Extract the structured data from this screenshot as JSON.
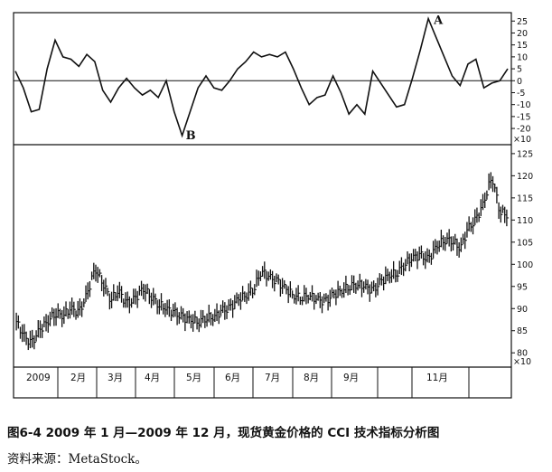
{
  "caption": "图6-4   2009 年 1 月—2009 年 12 月，现货黄金价格的 CCI 技术指标分析图",
  "source": "资料来源：MetaStock。",
  "chart_data": [
    {
      "type": "line",
      "series": [
        {
          "x": [
            0,
            4,
            8,
            12,
            16,
            20,
            24,
            28,
            32,
            36,
            40,
            44,
            48,
            52,
            56,
            60,
            64,
            68,
            72,
            76,
            80,
            84,
            88,
            92,
            96,
            100,
            104,
            108,
            112,
            116,
            120,
            124,
            128,
            132,
            136,
            140,
            144,
            148,
            152,
            156,
            160,
            164,
            168,
            172,
            176,
            180,
            184,
            188,
            192,
            196,
            200,
            204,
            208,
            212,
            216,
            220,
            224,
            228,
            232,
            236,
            240,
            244,
            248
          ],
          "values": [
            4,
            -3,
            -13,
            -12,
            5,
            17,
            10,
            9,
            6,
            11,
            8,
            -4,
            -9,
            -3,
            1,
            -3,
            -6,
            -4,
            -7,
            0,
            -13,
            -23,
            -13,
            -3,
            2,
            -3,
            -4,
            0,
            5,
            8,
            12,
            10,
            11,
            10,
            12,
            5,
            -3,
            -10,
            -7,
            -6,
            2,
            -5,
            -14,
            -10,
            -14,
            4,
            -1,
            -6,
            -11,
            -10,
            1,
            13,
            26,
            18,
            10,
            2,
            -2,
            7,
            9,
            -3,
            -1,
            0,
            5
          ],
          "ticks_per_x10": true
        }
      ],
      "yticks": [
        25,
        20,
        15,
        10,
        5,
        0,
        -5,
        -10,
        -15,
        -20
      ],
      "ylim": [
        -23,
        27
      ],
      "reference_line": 0,
      "scale_note": "×10",
      "annotations": [
        {
          "label": "A",
          "at_x": 208,
          "at_y": 26
        },
        {
          "label": "B",
          "at_x": 84,
          "at_y": -23
        }
      ]
    },
    {
      "type": "ohlc",
      "series": [
        {
          "x": [
            0,
            4,
            8,
            12,
            16,
            20,
            24,
            28,
            32,
            36,
            40,
            44,
            48,
            52,
            56,
            60,
            64,
            68,
            72,
            76,
            80,
            84,
            88,
            92,
            96,
            100,
            104,
            108,
            112,
            116,
            120,
            124,
            128,
            132,
            136,
            140,
            144,
            148,
            152,
            156,
            160,
            164,
            168,
            172,
            176,
            180,
            184,
            188,
            192,
            196,
            200,
            204,
            208,
            212,
            216,
            220,
            224,
            228,
            232,
            236,
            240,
            244,
            248
          ],
          "values": [
            87.5,
            84,
            82,
            85,
            87,
            89,
            88.5,
            90,
            89,
            93,
            99,
            96,
            92,
            94,
            91,
            92,
            94.5,
            93,
            91,
            90,
            89,
            88,
            87.5,
            87,
            88,
            88,
            89.5,
            90,
            92,
            93,
            94.5,
            98.5,
            97,
            96,
            94.5,
            93,
            92.5,
            93,
            92,
            91.5,
            93,
            94,
            95,
            95.5,
            95,
            94,
            96,
            97.5,
            98,
            100,
            101.5,
            102,
            101,
            104,
            105.5,
            105.5,
            103.5,
            108,
            110,
            114,
            120,
            112,
            111
          ]
        }
      ],
      "yticks": [
        125,
        120,
        115,
        110,
        105,
        100,
        95,
        90,
        85,
        80
      ],
      "ylim": [
        78,
        126
      ],
      "scale_note": "×10"
    }
  ],
  "x_axis": {
    "months": [
      "2009",
      "2月",
      "3月",
      "4月",
      "5月",
      "6月",
      "7月",
      "8月",
      "9月",
      "11月"
    ]
  }
}
